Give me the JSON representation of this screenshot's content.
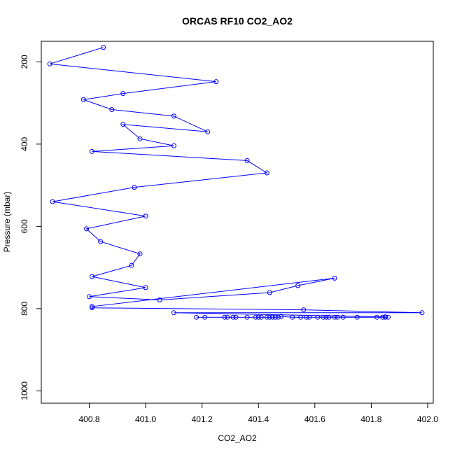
{
  "chart_data": {
    "type": "line",
    "title": "ORCAS RF10 CO2_AO2",
    "xlabel": "CO2_AO2",
    "ylabel": "Pressure (mbar)",
    "xlim": [
      400.63,
      402.02
    ],
    "ylim": [
      1030,
      150
    ],
    "y_inverted": true,
    "grid": false,
    "x_ticks": [
      400.8,
      401.0,
      401.2,
      401.4,
      401.6,
      401.8,
      402.0
    ],
    "x_tick_labels": [
      "400.8",
      "401.0",
      "401.2",
      "401.4",
      "401.6",
      "401.8",
      "402.0"
    ],
    "y_ticks": [
      200,
      400,
      600,
      800,
      1000
    ],
    "y_tick_labels": [
      "200",
      "400",
      "600",
      "800",
      "1000"
    ],
    "series": [
      {
        "color": "#0000ff",
        "marker": "open-circle",
        "x": [
          400.85,
          400.66,
          401.25,
          400.92,
          400.78,
          400.88,
          401.1,
          401.22,
          400.92,
          400.98,
          401.1,
          400.81,
          401.36,
          401.43,
          400.96,
          400.67,
          401.0,
          400.79,
          400.84,
          400.98,
          400.95,
          400.81,
          401.0,
          400.8,
          401.05,
          401.44,
          401.54,
          401.67,
          400.81,
          400.81,
          401.56,
          401.98,
          401.1,
          401.85
        ],
        "y": [
          165,
          205,
          248,
          277,
          292,
          316,
          332,
          370,
          352,
          387,
          404,
          418,
          440,
          470,
          505,
          540,
          575,
          606,
          637,
          667,
          695,
          722,
          749,
          771,
          779,
          761,
          744,
          726,
          795,
          798,
          803,
          810,
          810,
          820
        ]
      },
      {
        "color": "#0000ff",
        "marker": "open-circle",
        "x": [
          401.18,
          401.21,
          401.28,
          401.29,
          401.31,
          401.32,
          401.36,
          401.39,
          401.4,
          401.41,
          401.43,
          401.44,
          401.45,
          401.46,
          401.47,
          401.48,
          401.52,
          401.55,
          401.57,
          401.58,
          401.61,
          401.63,
          401.64,
          401.65,
          401.67,
          401.68,
          401.7,
          401.75,
          401.82,
          401.84,
          401.85,
          401.86
        ],
        "y": [
          821,
          821,
          821,
          821,
          821,
          821,
          821,
          821,
          821,
          821,
          821,
          821,
          821,
          821,
          821,
          819,
          821,
          821,
          821,
          821,
          821,
          821,
          821,
          821,
          821,
          821,
          821,
          821,
          821,
          821,
          821,
          821
        ]
      }
    ]
  }
}
